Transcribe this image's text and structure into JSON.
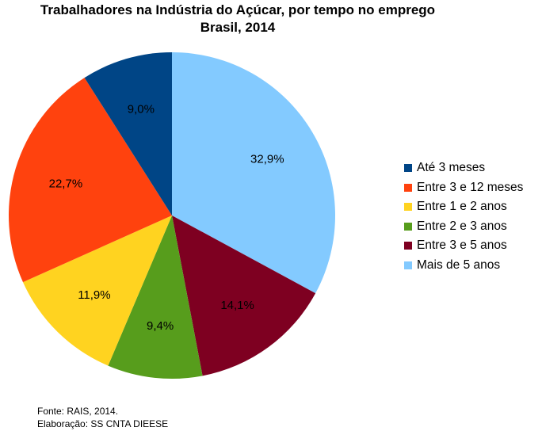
{
  "title": {
    "line1": "Trabalhadores na Indústria do Açúcar, por tempo no emprego",
    "line2": "Brasil, 2014"
  },
  "footer": {
    "source": "Fonte: RAIS, 2014.",
    "elaboration": "Elaboração: SS CNTA DIEESE"
  },
  "chart_data": {
    "type": "pie",
    "title": "Trabalhadores na Indústria do Açúcar, por tempo no emprego Brasil, 2014",
    "legend_position": "right",
    "categories": [
      "Até 3 meses",
      "Entre 3 e 12 meses",
      "Entre 1 e 2 anos",
      "Entre 2 e 3 anos",
      "Entre 3 e 5 anos",
      "Mais de 5 anos"
    ],
    "values": [
      9.0,
      22.7,
      11.9,
      9.4,
      14.1,
      32.9
    ],
    "labels": [
      "9,0%",
      "22,7%",
      "11,9%",
      "9,4%",
      "14,1%",
      "32,9%"
    ],
    "colors": [
      "#004586",
      "#ff420e",
      "#ffd320",
      "#579d1c",
      "#7e0021",
      "#83caff"
    ]
  }
}
